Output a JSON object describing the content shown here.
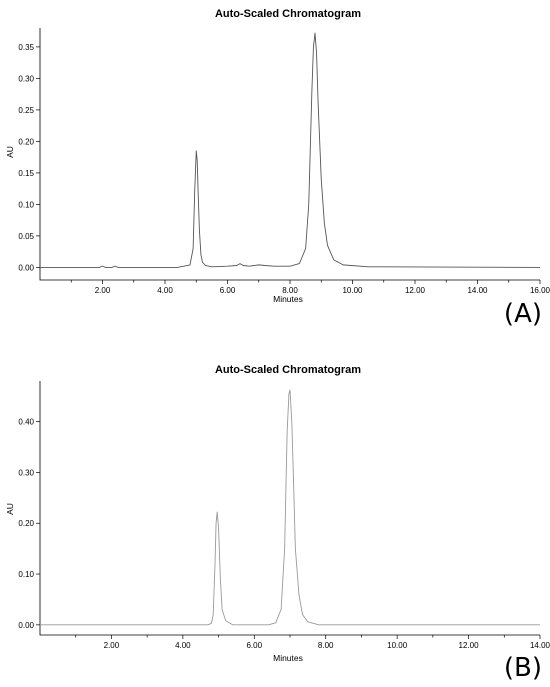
{
  "chart_data": [
    {
      "type": "line",
      "title": "Auto-Scaled Chromatogram",
      "xlabel": "Minutes",
      "ylabel": "AU",
      "panel_label": "(A)",
      "xlim": [
        0,
        16.0
      ],
      "ylim": [
        -0.02,
        0.38
      ],
      "x_ticks": [
        2.0,
        4.0,
        6.0,
        8.0,
        10.0,
        12.0,
        14.0,
        16.0
      ],
      "x_tick_labels": [
        "2.00",
        "4.00",
        "6.00",
        "8.00",
        "10.00",
        "12.00",
        "14.00",
        "16.00"
      ],
      "y_ticks": [
        0.0,
        0.05,
        0.1,
        0.15,
        0.2,
        0.25,
        0.3,
        0.35
      ],
      "y_tick_labels": [
        "0.00",
        "0.05",
        "0.10",
        "0.15",
        "0.20",
        "0.25",
        "0.30",
        "0.35"
      ],
      "grid": false,
      "line_color": "#555555",
      "series": [
        {
          "x": [
            0.0,
            1.9,
            2.0,
            2.1,
            2.3,
            2.4,
            2.5,
            4.4,
            4.8,
            4.9,
            4.95,
            5.0,
            5.03,
            5.06,
            5.1,
            5.15,
            5.2,
            5.3,
            5.5,
            6.0,
            6.3,
            6.4,
            6.5,
            6.7,
            7.0,
            7.2,
            7.5,
            8.0,
            8.3,
            8.5,
            8.6,
            8.7,
            8.75,
            8.8,
            8.85,
            8.9,
            9.0,
            9.1,
            9.2,
            9.4,
            9.7,
            10.5,
            16.0
          ],
          "y": [
            0.0,
            0.0,
            0.002,
            0.0,
            0.0,
            0.002,
            0.0,
            0.0,
            0.004,
            0.03,
            0.12,
            0.185,
            0.17,
            0.12,
            0.06,
            0.02,
            0.008,
            0.003,
            0.001,
            0.002,
            0.003,
            0.006,
            0.003,
            0.002,
            0.004,
            0.003,
            0.002,
            0.002,
            0.006,
            0.03,
            0.1,
            0.28,
            0.35,
            0.372,
            0.34,
            0.26,
            0.14,
            0.07,
            0.035,
            0.012,
            0.004,
            0.001,
            0.0
          ]
        }
      ]
    },
    {
      "type": "line",
      "title": "Auto-Scaled Chromatogram",
      "xlabel": "Minutes",
      "ylabel": "AU",
      "panel_label": "(B)",
      "xlim": [
        0,
        14.0
      ],
      "ylim": [
        -0.02,
        0.48
      ],
      "x_ticks": [
        2.0,
        4.0,
        6.0,
        8.0,
        10.0,
        12.0,
        14.0
      ],
      "x_tick_labels": [
        "2.00",
        "4.00",
        "6.00",
        "8.00",
        "10.00",
        "12.00",
        "14.00"
      ],
      "y_ticks": [
        0.0,
        0.1,
        0.2,
        0.3,
        0.4
      ],
      "y_tick_labels": [
        "0.00",
        "0.10",
        "0.20",
        "0.30",
        "0.40"
      ],
      "grid": false,
      "line_color": "#999999",
      "series": [
        {
          "x": [
            0.0,
            4.7,
            4.8,
            4.85,
            4.9,
            4.93,
            4.96,
            5.0,
            5.05,
            5.1,
            5.2,
            5.4,
            6.4,
            6.6,
            6.75,
            6.85,
            6.92,
            6.97,
            7.0,
            7.05,
            7.1,
            7.15,
            7.25,
            7.35,
            7.5,
            7.8,
            14.0
          ],
          "y": [
            0.0,
            0.0,
            0.003,
            0.02,
            0.12,
            0.2,
            0.222,
            0.19,
            0.09,
            0.03,
            0.008,
            0.0,
            0.0,
            0.004,
            0.03,
            0.15,
            0.38,
            0.455,
            0.462,
            0.4,
            0.28,
            0.15,
            0.06,
            0.02,
            0.006,
            0.0,
            0.0
          ]
        }
      ]
    }
  ]
}
